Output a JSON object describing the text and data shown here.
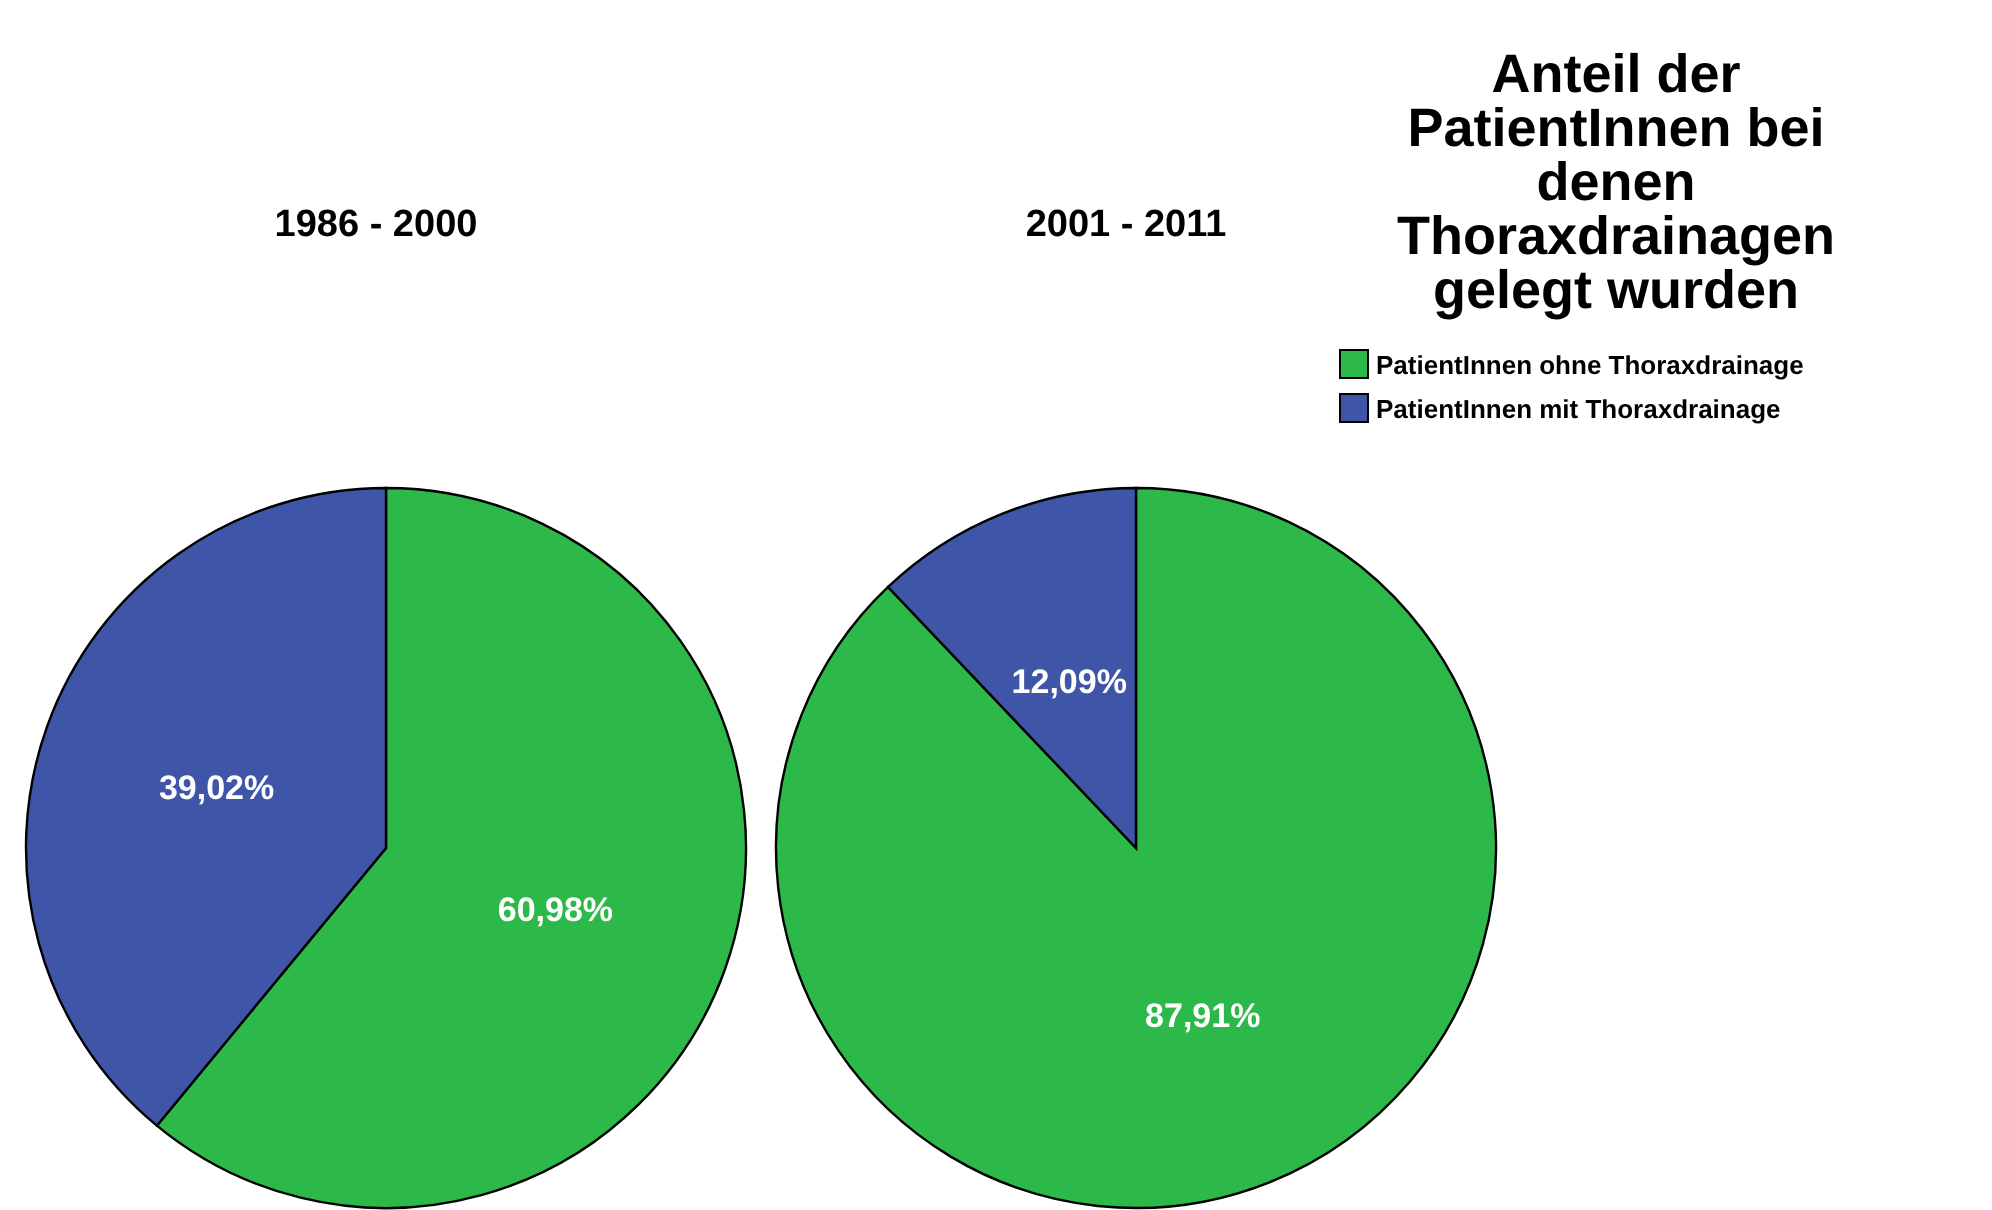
{
  "chart_data": [
    {
      "type": "pie",
      "title": "1986 - 2000",
      "categories": [
        "PatientInnen ohne Thoraxdrainage",
        "PatientInnen mit Thoraxdrainage"
      ],
      "values": [
        60.98,
        39.02
      ],
      "colors": [
        "#2db84a",
        "#3f55a8"
      ],
      "value_labels": [
        "60,98%",
        "39,02%"
      ],
      "legend": "top right",
      "legend_title": "Anteil der PatientInnen bei denen Thoraxdrainagen gelegt wurden"
    },
    {
      "type": "pie",
      "title": "2001 - 2011",
      "categories": [
        null,
        null
      ],
      "values": [
        87.91,
        12.09
      ],
      "colors": [
        "#2db84a",
        "#3f55a8"
      ],
      "value_labels": [
        "87,91%",
        "12,09%"
      ]
    }
  ]
}
